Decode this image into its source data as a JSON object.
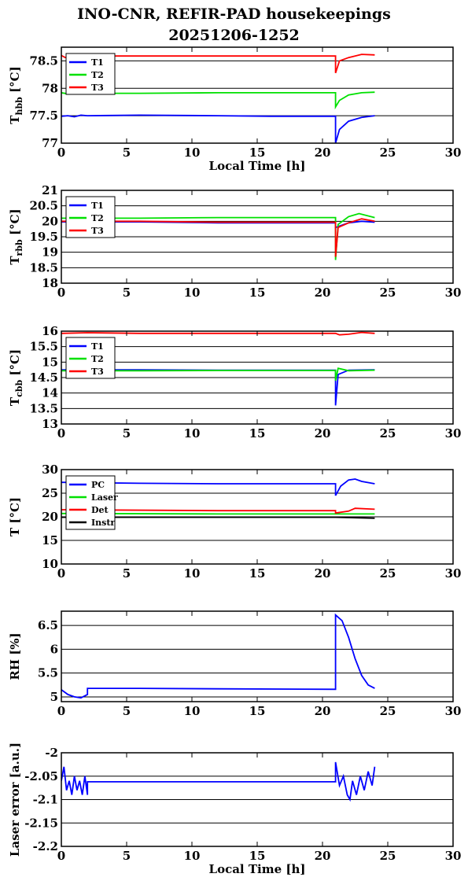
{
  "header": {
    "title": "INO-CNR, REFIR-PAD housekeepings",
    "subtitle": "20251206-1252"
  },
  "chart_data": [
    {
      "type": "line",
      "ylabel": "T",
      "ylabel_sub": "hbb",
      "ylabel_unit": "[°C]",
      "xlabel": "Local Time [h]",
      "xlim": [
        0,
        30
      ],
      "ylim": [
        77,
        78.75
      ],
      "xticks": [
        "0",
        "5",
        "10",
        "15",
        "20",
        "25",
        "30"
      ],
      "yticks": [
        {
          "v": 77,
          "label": "77"
        },
        {
          "v": 77.5,
          "label": "77.5"
        },
        {
          "v": 78,
          "label": "78"
        },
        {
          "v": 78.5,
          "label": "78.5"
        }
      ],
      "grid": true,
      "legend": "top-left",
      "series": [
        {
          "name": "T1",
          "color": "#0000ff",
          "values": [
            [
              0,
              77.49
            ],
            [
              0.5,
              77.5
            ],
            [
              1,
              77.48
            ],
            [
              1.5,
              77.51
            ],
            [
              2,
              77.5
            ],
            [
              6,
              77.51
            ],
            [
              12,
              77.5
            ],
            [
              16,
              77.49
            ],
            [
              21,
              77.49
            ],
            [
              21,
              77.0
            ],
            [
              21.3,
              77.25
            ],
            [
              22,
              77.4
            ],
            [
              23,
              77.47
            ],
            [
              24,
              77.5
            ]
          ]
        },
        {
          "name": "T2",
          "color": "#00e000",
          "values": [
            [
              0,
              77.92
            ],
            [
              0.5,
              77.9
            ],
            [
              1,
              77.91
            ],
            [
              2,
              77.91
            ],
            [
              6,
              77.91
            ],
            [
              12,
              77.92
            ],
            [
              16,
              77.92
            ],
            [
              21,
              77.92
            ],
            [
              21,
              77.66
            ],
            [
              21.3,
              77.78
            ],
            [
              22,
              77.88
            ],
            [
              23,
              77.92
            ],
            [
              24,
              77.93
            ]
          ]
        },
        {
          "name": "T3",
          "color": "#ff0000",
          "values": [
            [
              0,
              78.6
            ],
            [
              0.3,
              78.56
            ],
            [
              1,
              78.59
            ],
            [
              2,
              78.59
            ],
            [
              6,
              78.59
            ],
            [
              12,
              78.59
            ],
            [
              16,
              78.59
            ],
            [
              21,
              78.59
            ],
            [
              21,
              78.28
            ],
            [
              21.3,
              78.5
            ],
            [
              22,
              78.56
            ],
            [
              23,
              78.62
            ],
            [
              24,
              78.61
            ]
          ]
        }
      ]
    },
    {
      "type": "line",
      "ylabel": "T",
      "ylabel_sub": "rbb",
      "ylabel_unit": "[°C]",
      "xlabel": "",
      "xlim": [
        0,
        30
      ],
      "ylim": [
        18,
        21
      ],
      "xticks": [
        "0",
        "5",
        "10",
        "15",
        "20",
        "25",
        "30"
      ],
      "yticks": [
        {
          "v": 18,
          "label": "18"
        },
        {
          "v": 18.5,
          "label": "18.5"
        },
        {
          "v": 19,
          "label": "19"
        },
        {
          "v": 19.5,
          "label": "19.5"
        },
        {
          "v": 20,
          "label": "20"
        },
        {
          "v": 20.5,
          "label": "20.5"
        },
        {
          "v": 21,
          "label": "21"
        }
      ],
      "grid": true,
      "legend": "top-left",
      "series": [
        {
          "name": "T1",
          "color": "#0000ff",
          "values": [
            [
              0,
              19.98
            ],
            [
              6,
              19.98
            ],
            [
              12,
              19.95
            ],
            [
              21,
              19.95
            ],
            [
              21,
              19.8
            ],
            [
              22,
              19.95
            ],
            [
              23,
              20.0
            ],
            [
              24,
              19.97
            ]
          ]
        },
        {
          "name": "T2",
          "color": "#00e000",
          "values": [
            [
              0,
              20.1
            ],
            [
              6,
              20.1
            ],
            [
              12,
              20.12
            ],
            [
              21,
              20.12
            ],
            [
              21,
              18.75
            ],
            [
              21.2,
              19.9
            ],
            [
              22,
              20.15
            ],
            [
              22.8,
              20.25
            ],
            [
              24,
              20.12
            ]
          ]
        },
        {
          "name": "T3",
          "color": "#ff0000",
          "values": [
            [
              0,
              20.0
            ],
            [
              6,
              20.0
            ],
            [
              12,
              19.97
            ],
            [
              21,
              19.97
            ],
            [
              21,
              18.85
            ],
            [
              21.2,
              19.8
            ],
            [
              22,
              19.95
            ],
            [
              23,
              20.08
            ],
            [
              24,
              20.0
            ]
          ]
        }
      ]
    },
    {
      "type": "line",
      "ylabel": "T",
      "ylabel_sub": "cbb",
      "ylabel_unit": "[°C]",
      "xlabel": "",
      "xlim": [
        0,
        30
      ],
      "ylim": [
        13,
        16
      ],
      "xticks": [
        "0",
        "5",
        "10",
        "15",
        "20",
        "25",
        "30"
      ],
      "yticks": [
        {
          "v": 13,
          "label": "13"
        },
        {
          "v": 13.5,
          "label": "13.5"
        },
        {
          "v": 14,
          "label": "14"
        },
        {
          "v": 14.5,
          "label": "14.5"
        },
        {
          "v": 15,
          "label": "15"
        },
        {
          "v": 15.5,
          "label": "15.5"
        },
        {
          "v": 16,
          "label": "16"
        }
      ],
      "grid": true,
      "legend": "top-left",
      "series": [
        {
          "name": "T1",
          "color": "#0000ff",
          "values": [
            [
              0,
              14.75
            ],
            [
              6,
              14.75
            ],
            [
              12,
              14.74
            ],
            [
              21,
              14.74
            ],
            [
              21,
              13.6
            ],
            [
              21.2,
              14.6
            ],
            [
              22,
              14.74
            ],
            [
              24,
              14.75
            ]
          ]
        },
        {
          "name": "T2",
          "color": "#00e000",
          "values": [
            [
              0,
              14.72
            ],
            [
              6,
              14.72
            ],
            [
              12,
              14.73
            ],
            [
              21,
              14.73
            ],
            [
              21,
              14.4
            ],
            [
              21.2,
              14.8
            ],
            [
              22,
              14.72
            ],
            [
              24,
              14.74
            ]
          ]
        },
        {
          "name": "T3",
          "color": "#ff0000",
          "values": [
            [
              0,
              15.93
            ],
            [
              2,
              15.95
            ],
            [
              6,
              15.93
            ],
            [
              12,
              15.93
            ],
            [
              21,
              15.93
            ],
            [
              21.3,
              15.88
            ],
            [
              22,
              15.9
            ],
            [
              23,
              15.96
            ],
            [
              24,
              15.93
            ]
          ]
        }
      ]
    },
    {
      "type": "line",
      "ylabel": "T [°C]",
      "ylabel_sub": "",
      "ylabel_unit": "",
      "xlabel": "",
      "xlim": [
        0,
        30
      ],
      "ylim": [
        10,
        30
      ],
      "xticks": [
        "0",
        "5",
        "10",
        "15",
        "20",
        "25",
        "30"
      ],
      "yticks": [
        {
          "v": 10,
          "label": "10"
        },
        {
          "v": 15,
          "label": "15"
        },
        {
          "v": 20,
          "label": "20"
        },
        {
          "v": 25,
          "label": "25"
        },
        {
          "v": 30,
          "label": "30"
        }
      ],
      "grid": true,
      "legend": "top-left",
      "series": [
        {
          "name": "PC",
          "color": "#0000ff",
          "values": [
            [
              0,
              27.3
            ],
            [
              6,
              27.1
            ],
            [
              12,
              27.0
            ],
            [
              21,
              27.0
            ],
            [
              21,
              24.5
            ],
            [
              21.4,
              26.5
            ],
            [
              22,
              27.8
            ],
            [
              22.5,
              28.0
            ],
            [
              23,
              27.5
            ],
            [
              24,
              27.0
            ]
          ]
        },
        {
          "name": "Laser",
          "color": "#00e000",
          "values": [
            [
              0,
              20.7
            ],
            [
              12,
              20.6
            ],
            [
              21,
              20.6
            ],
            [
              24,
              20.6
            ]
          ]
        },
        {
          "name": "Det",
          "color": "#ff0000",
          "values": [
            [
              0,
              21.5
            ],
            [
              12,
              21.3
            ],
            [
              21,
              21.3
            ],
            [
              21,
              20.8
            ],
            [
              22,
              21.2
            ],
            [
              22.5,
              21.8
            ],
            [
              24,
              21.6
            ]
          ]
        },
        {
          "name": "Instr",
          "color": "#000000",
          "values": [
            [
              0,
              19.9
            ],
            [
              12,
              19.9
            ],
            [
              21,
              19.9
            ],
            [
              24,
              19.7
            ]
          ]
        }
      ]
    },
    {
      "type": "line",
      "ylabel": "RH [%]",
      "ylabel_sub": "",
      "ylabel_unit": "",
      "xlabel": "",
      "xlim": [
        0,
        30
      ],
      "ylim": [
        4.9,
        6.8
      ],
      "xticks": [
        "0",
        "5",
        "10",
        "15",
        "20",
        "25",
        "30"
      ],
      "yticks": [
        {
          "v": 5,
          "label": "5"
        },
        {
          "v": 5.5,
          "label": "5.5"
        },
        {
          "v": 6,
          "label": "6"
        },
        {
          "v": 6.5,
          "label": "6.5"
        }
      ],
      "grid": true,
      "legend": "none",
      "series": [
        {
          "name": "",
          "color": "#0000ff",
          "values": [
            [
              0,
              5.15
            ],
            [
              0.5,
              5.05
            ],
            [
              1,
              5.0
            ],
            [
              1.5,
              4.98
            ],
            [
              2,
              5.05
            ],
            [
              2,
              5.18
            ],
            [
              6,
              5.18
            ],
            [
              12,
              5.17
            ],
            [
              21,
              5.16
            ],
            [
              21,
              6.72
            ],
            [
              21.5,
              6.6
            ],
            [
              22,
              6.25
            ],
            [
              22.5,
              5.8
            ],
            [
              23,
              5.45
            ],
            [
              23.5,
              5.25
            ],
            [
              24,
              5.18
            ]
          ]
        }
      ]
    },
    {
      "type": "line",
      "ylabel": "Laser error [a.u.]",
      "ylabel_sub": "",
      "ylabel_unit": "",
      "xlabel": "Local Time [h]",
      "xlim": [
        0,
        30
      ],
      "ylim": [
        -2.2,
        -2.0
      ],
      "xticks": [
        "0",
        "5",
        "10",
        "15",
        "20",
        "25",
        "30"
      ],
      "yticks": [
        {
          "v": -2.2,
          "label": "-2.2"
        },
        {
          "v": -2.15,
          "label": "-2.15"
        },
        {
          "v": -2.1,
          "label": "-2.1"
        },
        {
          "v": -2.05,
          "label": "-2.05"
        },
        {
          "v": -2.0,
          "label": "-2"
        }
      ],
      "grid": true,
      "legend": "none",
      "series": [
        {
          "name": "",
          "color": "#0000ff",
          "values": [
            [
              0,
              -2.06
            ],
            [
              0.2,
              -2.03
            ],
            [
              0.4,
              -2.08
            ],
            [
              0.6,
              -2.06
            ],
            [
              0.8,
              -2.09
            ],
            [
              1,
              -2.05
            ],
            [
              1.2,
              -2.08
            ],
            [
              1.4,
              -2.06
            ],
            [
              1.6,
              -2.09
            ],
            [
              1.8,
              -2.05
            ],
            [
              2,
              -2.09
            ],
            [
              2,
              -2.062
            ],
            [
              6,
              -2.062
            ],
            [
              12,
              -2.062
            ],
            [
              21,
              -2.062
            ],
            [
              21,
              -2.02
            ],
            [
              21.3,
              -2.07
            ],
            [
              21.6,
              -2.05
            ],
            [
              21.9,
              -2.09
            ],
            [
              22.1,
              -2.1
            ],
            [
              22.3,
              -2.06
            ],
            [
              22.6,
              -2.09
            ],
            [
              22.9,
              -2.05
            ],
            [
              23.2,
              -2.08
            ],
            [
              23.5,
              -2.04
            ],
            [
              23.8,
              -2.07
            ],
            [
              24,
              -2.03
            ]
          ]
        }
      ]
    }
  ]
}
